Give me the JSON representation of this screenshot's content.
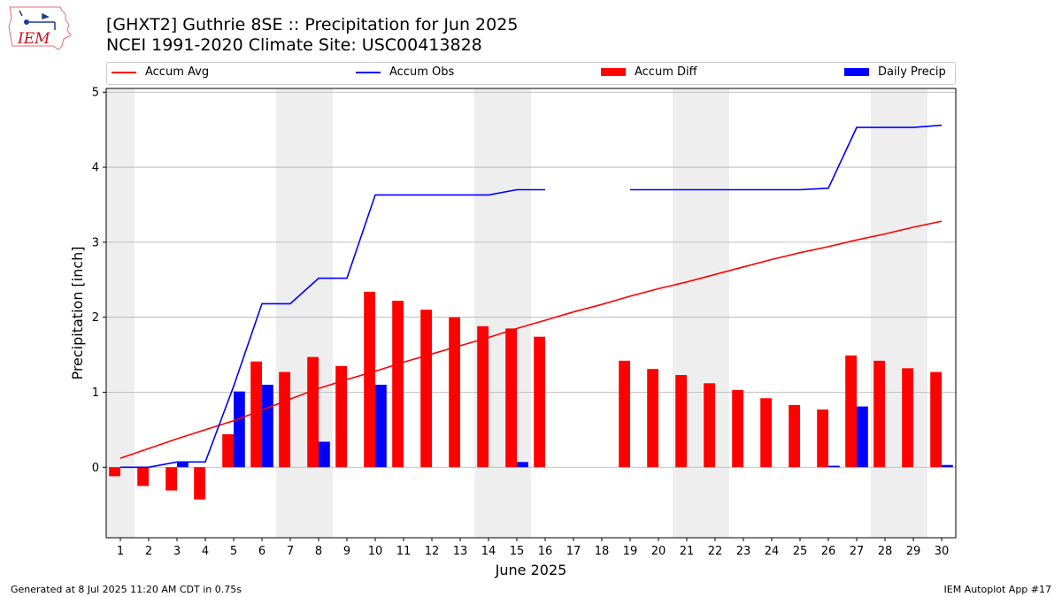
{
  "header": {
    "title_line1": "[GHXT2] Guthrie 8SE :: Precipitation for Jun 2025",
    "title_line2": "NCEI 1991-2020 Climate Site: USC00413828",
    "logo_text": "IEM"
  },
  "legend": {
    "accum_avg": "Accum Avg",
    "accum_obs": "Accum Obs",
    "accum_diff": "Accum Diff",
    "daily_precip": "Daily Precip"
  },
  "footer": {
    "generated": "Generated at 8 Jul 2025 11:20 AM CDT in 0.75s",
    "app": "IEM Autoplot App #17"
  },
  "colors": {
    "accum_avg": "#ff0000",
    "accum_obs": "#0000ff",
    "accum_diff": "#ff0000",
    "daily_precip": "#0000ff",
    "weekend_shade": "#eeeeee",
    "grid": "#b0b0b0"
  },
  "chart_data": {
    "type": "bar",
    "title": "[GHXT2] Guthrie 8SE :: Precipitation for Jun 2025",
    "subtitle": "NCEI 1991-2020 Climate Site: USC00413828",
    "xlabel": "June 2025",
    "ylabel": "Precipitation [inch]",
    "ylim": [
      -0.94,
      5.05
    ],
    "yticks": [
      0,
      1,
      2,
      3,
      4,
      5
    ],
    "grid": "horizontal",
    "legend_placement": "top",
    "x": [
      1,
      2,
      3,
      4,
      5,
      6,
      7,
      8,
      9,
      10,
      11,
      12,
      13,
      14,
      15,
      16,
      17,
      18,
      19,
      20,
      21,
      22,
      23,
      24,
      25,
      26,
      27,
      28,
      29,
      30
    ],
    "shaded_days": [
      1,
      7,
      8,
      14,
      15,
      21,
      22,
      28,
      29
    ],
    "series": [
      {
        "name": "Accum Avg",
        "kind": "line",
        "values": [
          0.12,
          0.25,
          0.38,
          0.5,
          0.62,
          0.76,
          0.91,
          1.05,
          1.17,
          1.28,
          1.4,
          1.51,
          1.62,
          1.73,
          1.85,
          1.96,
          2.07,
          2.17,
          2.28,
          2.38,
          2.47,
          2.57,
          2.67,
          2.77,
          2.86,
          2.94,
          3.03,
          3.11,
          3.2,
          3.28
        ]
      },
      {
        "name": "Accum Obs",
        "kind": "line",
        "values": [
          0.0,
          0.0,
          0.07,
          0.07,
          1.08,
          2.18,
          2.18,
          2.52,
          2.52,
          3.63,
          3.63,
          3.63,
          3.63,
          3.63,
          3.7,
          3.7,
          null,
          null,
          3.7,
          3.7,
          3.7,
          3.7,
          3.7,
          3.7,
          3.7,
          3.72,
          4.53,
          4.53,
          4.53,
          4.56
        ]
      },
      {
        "name": "Accum Diff",
        "kind": "bar",
        "values": [
          -0.12,
          -0.25,
          -0.31,
          -0.43,
          0.44,
          1.41,
          1.27,
          1.47,
          1.35,
          2.34,
          2.22,
          2.1,
          2.0,
          1.88,
          1.85,
          1.74,
          null,
          null,
          1.42,
          1.31,
          1.23,
          1.12,
          1.03,
          0.92,
          0.83,
          0.77,
          1.49,
          1.42,
          1.32,
          1.27
        ]
      },
      {
        "name": "Daily Precip",
        "kind": "bar",
        "values": [
          0,
          0,
          0.07,
          0,
          1.01,
          1.1,
          0,
          0.34,
          0,
          1.1,
          0,
          0,
          0,
          0,
          0.07,
          0,
          null,
          null,
          0,
          0,
          0,
          0,
          0,
          0,
          0,
          0.02,
          0.81,
          0,
          0,
          0.03
        ]
      }
    ]
  }
}
